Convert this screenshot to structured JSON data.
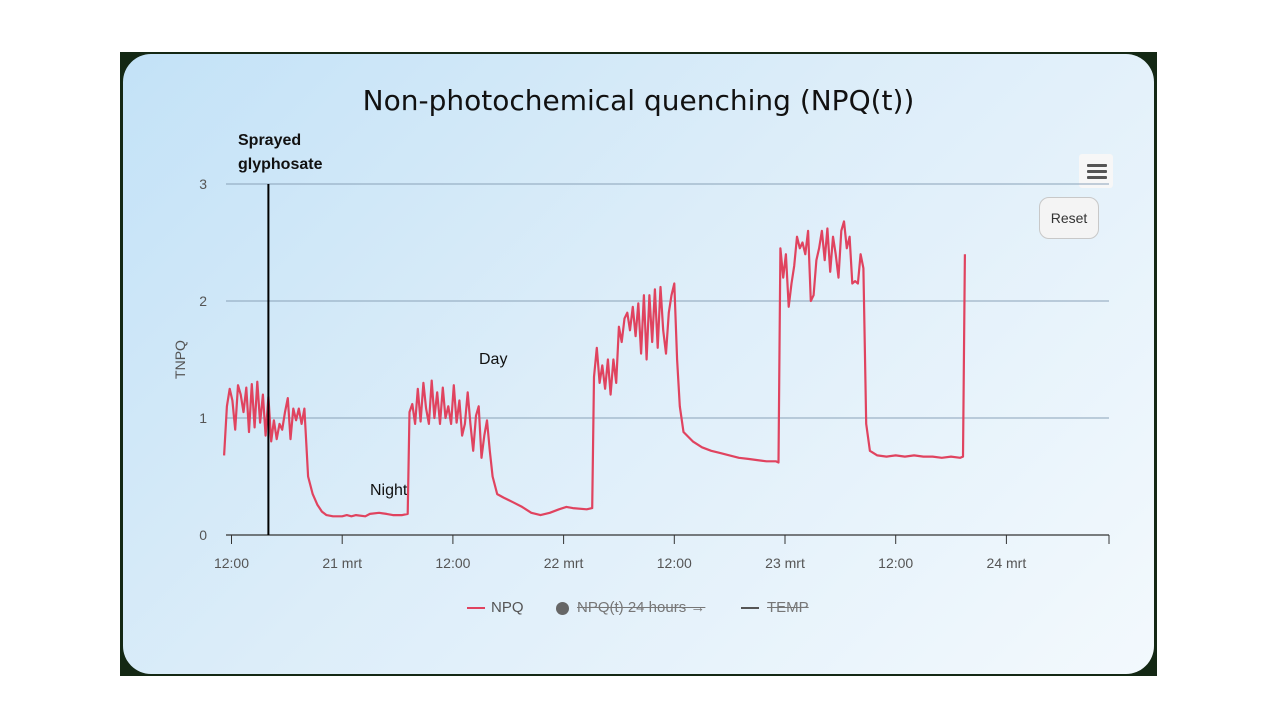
{
  "chart_data": {
    "type": "line",
    "title": "Non-photochemical quenching (NPQ(t))",
    "ylabel": "TNPQ",
    "ylim": [
      0,
      3
    ],
    "y_ticks": [
      "0",
      "1",
      "2",
      "3"
    ],
    "x_ticks": [
      "12:00",
      "21 mrt",
      "12:00",
      "22 mrt",
      "12:00",
      "23 mrt",
      "12:00",
      "24 mrt"
    ],
    "x_unit": "hours since 20 mrt 00:00",
    "grid": true,
    "legend_position": "bottom",
    "annotations": {
      "sprayed": "Sprayed\nglyphosate",
      "sprayed_line1": "Sprayed",
      "sprayed_line2": "glyphosate",
      "sprayed_at_hours": 16,
      "night": "Night",
      "day": "Day"
    },
    "series": [
      {
        "name": "NPQ",
        "color": "#e0435f",
        "visible": true,
        "points": [
          [
            11.2,
            0.68
          ],
          [
            11.5,
            1.1
          ],
          [
            11.8,
            1.25
          ],
          [
            12.1,
            1.15
          ],
          [
            12.4,
            0.9
          ],
          [
            12.7,
            1.28
          ],
          [
            13.0,
            1.2
          ],
          [
            13.3,
            1.05
          ],
          [
            13.6,
            1.26
          ],
          [
            13.9,
            0.88
          ],
          [
            14.2,
            1.29
          ],
          [
            14.5,
            0.92
          ],
          [
            14.8,
            1.31
          ],
          [
            15.1,
            0.96
          ],
          [
            15.4,
            1.2
          ],
          [
            15.7,
            0.85
          ],
          [
            16.0,
            1.18
          ],
          [
            16.3,
            0.8
          ],
          [
            16.6,
            0.98
          ],
          [
            16.9,
            0.82
          ],
          [
            17.2,
            0.95
          ],
          [
            17.5,
            0.9
          ],
          [
            17.8,
            1.05
          ],
          [
            18.1,
            1.17
          ],
          [
            18.4,
            0.82
          ],
          [
            18.7,
            1.08
          ],
          [
            19.0,
            0.98
          ],
          [
            19.3,
            1.08
          ],
          [
            19.6,
            0.95
          ],
          [
            19.9,
            1.08
          ],
          [
            20.3,
            0.5
          ],
          [
            20.8,
            0.35
          ],
          [
            21.3,
            0.26
          ],
          [
            21.8,
            0.2
          ],
          [
            22.3,
            0.17
          ],
          [
            23.0,
            0.16
          ],
          [
            24.0,
            0.16
          ],
          [
            24.5,
            0.17
          ],
          [
            25.0,
            0.16
          ],
          [
            25.5,
            0.17
          ],
          [
            26.5,
            0.16
          ],
          [
            27.0,
            0.18
          ],
          [
            28.0,
            0.19
          ],
          [
            28.8,
            0.18
          ],
          [
            29.5,
            0.17
          ],
          [
            30.5,
            0.17
          ],
          [
            31.1,
            0.18
          ],
          [
            31.3,
            1.05
          ],
          [
            31.6,
            1.12
          ],
          [
            31.9,
            0.95
          ],
          [
            32.2,
            1.25
          ],
          [
            32.5,
            0.97
          ],
          [
            32.8,
            1.3
          ],
          [
            33.1,
            1.08
          ],
          [
            33.4,
            0.95
          ],
          [
            33.7,
            1.32
          ],
          [
            34.0,
            1.0
          ],
          [
            34.3,
            1.22
          ],
          [
            34.6,
            0.95
          ],
          [
            34.9,
            1.26
          ],
          [
            35.2,
            1.0
          ],
          [
            35.5,
            1.1
          ],
          [
            35.8,
            0.95
          ],
          [
            36.1,
            1.28
          ],
          [
            36.4,
            0.96
          ],
          [
            36.7,
            1.15
          ],
          [
            37.0,
            0.85
          ],
          [
            37.3,
            0.95
          ],
          [
            37.6,
            1.22
          ],
          [
            37.9,
            0.95
          ],
          [
            38.2,
            0.72
          ],
          [
            38.5,
            1.02
          ],
          [
            38.8,
            1.1
          ],
          [
            39.1,
            0.66
          ],
          [
            39.4,
            0.85
          ],
          [
            39.7,
            0.98
          ],
          [
            40.0,
            0.72
          ],
          [
            40.3,
            0.5
          ],
          [
            40.8,
            0.35
          ],
          [
            41.5,
            0.32
          ],
          [
            42.5,
            0.28
          ],
          [
            43.5,
            0.24
          ],
          [
            44.5,
            0.19
          ],
          [
            45.5,
            0.17
          ],
          [
            46.5,
            0.19
          ],
          [
            47.5,
            0.22
          ],
          [
            48.3,
            0.24
          ],
          [
            49.0,
            0.23
          ],
          [
            50.5,
            0.22
          ],
          [
            51.1,
            0.23
          ],
          [
            51.3,
            1.35
          ],
          [
            51.6,
            1.6
          ],
          [
            51.9,
            1.3
          ],
          [
            52.2,
            1.45
          ],
          [
            52.5,
            1.25
          ],
          [
            52.8,
            1.5
          ],
          [
            53.1,
            1.2
          ],
          [
            53.4,
            1.5
          ],
          [
            53.7,
            1.3
          ],
          [
            54.0,
            1.78
          ],
          [
            54.3,
            1.65
          ],
          [
            54.6,
            1.85
          ],
          [
            54.9,
            1.9
          ],
          [
            55.2,
            1.75
          ],
          [
            55.5,
            1.95
          ],
          [
            55.8,
            1.7
          ],
          [
            56.1,
            1.98
          ],
          [
            56.4,
            1.55
          ],
          [
            56.7,
            2.05
          ],
          [
            57.0,
            1.5
          ],
          [
            57.3,
            2.05
          ],
          [
            57.6,
            1.65
          ],
          [
            57.9,
            2.1
          ],
          [
            58.2,
            1.6
          ],
          [
            58.5,
            2.12
          ],
          [
            58.8,
            1.75
          ],
          [
            59.1,
            1.55
          ],
          [
            59.4,
            1.9
          ],
          [
            59.7,
            2.05
          ],
          [
            60.0,
            2.15
          ],
          [
            60.3,
            1.5
          ],
          [
            60.6,
            1.1
          ],
          [
            61.0,
            0.88
          ],
          [
            62.0,
            0.8
          ],
          [
            63.0,
            0.75
          ],
          [
            64.0,
            0.72
          ],
          [
            65.0,
            0.7
          ],
          [
            66.0,
            0.68
          ],
          [
            67.0,
            0.66
          ],
          [
            68.0,
            0.65
          ],
          [
            69.0,
            0.64
          ],
          [
            70.0,
            0.63
          ],
          [
            71.0,
            0.63
          ],
          [
            71.3,
            0.62
          ],
          [
            71.5,
            2.45
          ],
          [
            71.8,
            2.2
          ],
          [
            72.1,
            2.4
          ],
          [
            72.4,
            1.95
          ],
          [
            72.7,
            2.15
          ],
          [
            73.0,
            2.3
          ],
          [
            73.3,
            2.55
          ],
          [
            73.6,
            2.45
          ],
          [
            73.9,
            2.5
          ],
          [
            74.2,
            2.4
          ],
          [
            74.5,
            2.6
          ],
          [
            74.8,
            2.0
          ],
          [
            75.1,
            2.05
          ],
          [
            75.4,
            2.35
          ],
          [
            75.7,
            2.45
          ],
          [
            76.0,
            2.6
          ],
          [
            76.3,
            2.35
          ],
          [
            76.6,
            2.62
          ],
          [
            76.9,
            2.25
          ],
          [
            77.2,
            2.55
          ],
          [
            77.5,
            2.4
          ],
          [
            77.8,
            2.2
          ],
          [
            78.1,
            2.6
          ],
          [
            78.4,
            2.68
          ],
          [
            78.7,
            2.45
          ],
          [
            79.0,
            2.55
          ],
          [
            79.3,
            2.15
          ],
          [
            79.6,
            2.17
          ],
          [
            79.9,
            2.15
          ],
          [
            80.2,
            2.4
          ],
          [
            80.5,
            2.28
          ],
          [
            80.8,
            0.95
          ],
          [
            81.2,
            0.72
          ],
          [
            82.0,
            0.68
          ],
          [
            83.0,
            0.67
          ],
          [
            84.0,
            0.68
          ],
          [
            85.0,
            0.67
          ],
          [
            86.0,
            0.68
          ],
          [
            87.0,
            0.67
          ],
          [
            88.0,
            0.67
          ],
          [
            89.0,
            0.66
          ],
          [
            90.0,
            0.67
          ],
          [
            91.0,
            0.66
          ],
          [
            91.3,
            0.67
          ],
          [
            91.5,
            2.4
          ]
        ]
      },
      {
        "name": "NPQ(t) 24 hours →",
        "color": "#555555",
        "visible": false
      },
      {
        "name": "TEMP",
        "color": "#555555",
        "visible": false
      }
    ]
  },
  "toolbar": {
    "reset_label": "Reset"
  }
}
